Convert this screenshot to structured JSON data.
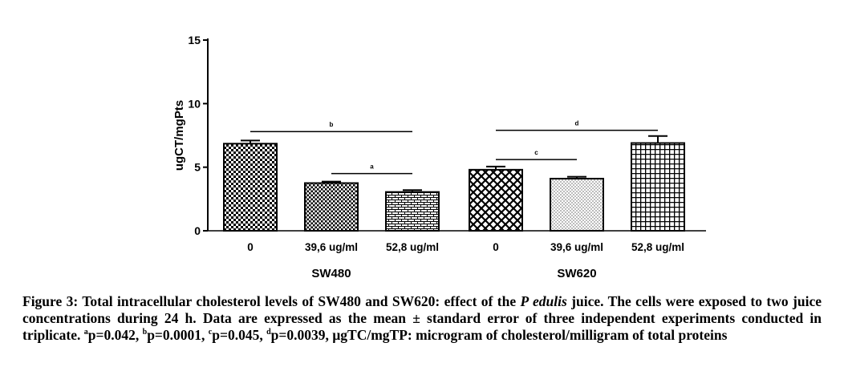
{
  "chart_data": {
    "type": "bar",
    "ylabel": "ugCT/mgPts",
    "ylim": [
      0,
      15
    ],
    "yticks": [
      "0",
      "5",
      "10",
      "15"
    ],
    "groups": [
      {
        "name": "SW480",
        "bars": [
          {
            "label": "0",
            "value": 6.85,
            "error": 0.25,
            "pattern": "checker"
          },
          {
            "label": "39,6 ug/ml",
            "value": 3.75,
            "error": 0.12,
            "pattern": "dots"
          },
          {
            "label": "52,8 ug/ml",
            "value": 3.05,
            "error": 0.15,
            "pattern": "brick"
          }
        ]
      },
      {
        "name": "SW620",
        "bars": [
          {
            "label": "0",
            "value": 4.8,
            "error": 0.25,
            "pattern": "diamond"
          },
          {
            "label": "39,6 ug/ml",
            "value": 4.1,
            "error": 0.15,
            "pattern": "stipple"
          },
          {
            "label": "52,8 ug/ml",
            "value": 6.9,
            "error": 0.55,
            "pattern": "grid"
          }
        ]
      }
    ],
    "significance": [
      {
        "label": "b",
        "group": 0,
        "from": 0,
        "to": 2,
        "y": 7.8
      },
      {
        "label": "a",
        "group": 0,
        "from": 1,
        "to": 2,
        "y": 4.5
      },
      {
        "label": "d",
        "group": 1,
        "from": 0,
        "to": 2,
        "y": 7.9
      },
      {
        "label": "c",
        "group": 1,
        "from": 0,
        "to": 1,
        "y": 5.6
      }
    ]
  },
  "caption": {
    "prefix": "Figure 3: Total intracellular cholesterol levels of SW480 and SW620: effect of the ",
    "species": "P edulis",
    "middle": " juice. The cells were exposed to two juice concentrations during 24 h. Data are expressed as the mean ± standard error of three independent experiments conducted in triplicate. ",
    "stat_a_mark": "a",
    "stat_a": "p=0.042, ",
    "stat_b_mark": "b",
    "stat_b": "p=0.0001, ",
    "stat_c_mark": "c",
    "stat_c": "p=0.045, ",
    "stat_d_mark": "d",
    "stat_d": "p=0.0039, µgTC/mgTP: microgram of cholesterol/milligram of total proteins"
  }
}
